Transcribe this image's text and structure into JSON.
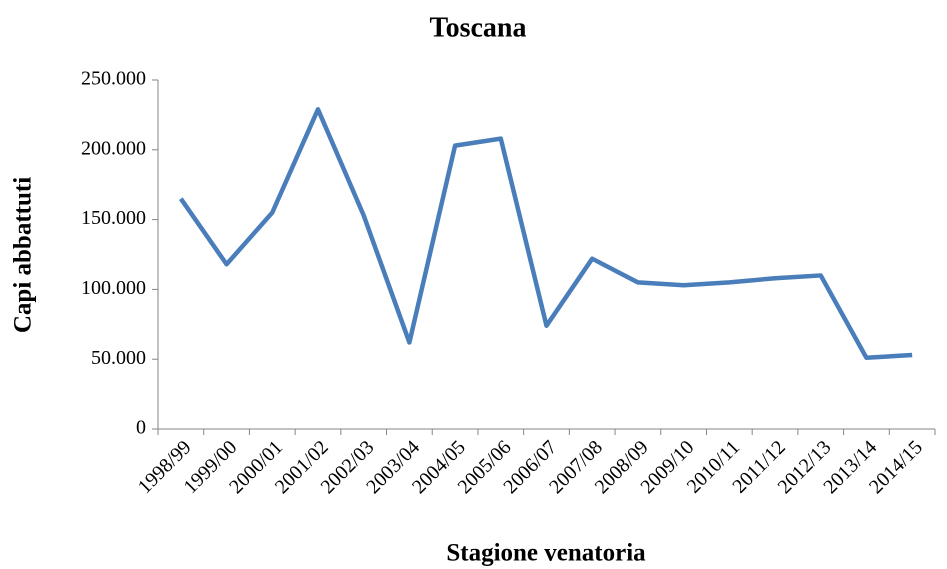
{
  "chart_data": {
    "type": "line",
    "title": "Toscana",
    "x_label": "Stagione venatoria",
    "y_label": "Capi abbattuti",
    "categories": [
      "1998/99",
      "1999/00",
      "2000/01",
      "2001/02",
      "2002/03",
      "2003/04",
      "2004/05",
      "2005/06",
      "2006/07",
      "2007/08",
      "2008/09",
      "2009/10",
      "2010/11",
      "2011/12",
      "2012/13",
      "2013/14",
      "2014/15"
    ],
    "series": [
      {
        "name": "Capi abbattuti",
        "color": "#4a7ebb",
        "values": [
          165000,
          118000,
          155000,
          229000,
          153000,
          62000,
          203000,
          208000,
          74000,
          122000,
          105000,
          103000,
          105000,
          108000,
          110000,
          51000,
          53000
        ]
      }
    ],
    "ylim": [
      0,
      250000
    ],
    "yticks": [
      0,
      {
        "value": 50000,
        "label": "50.000"
      },
      {
        "value": 100000,
        "label": "100.000"
      },
      {
        "value": 150000,
        "label": "150.000"
      },
      {
        "value": 200000,
        "label": "200.000"
      },
      {
        "value": 250000,
        "label": "250.000"
      }
    ],
    "grid": false
  }
}
